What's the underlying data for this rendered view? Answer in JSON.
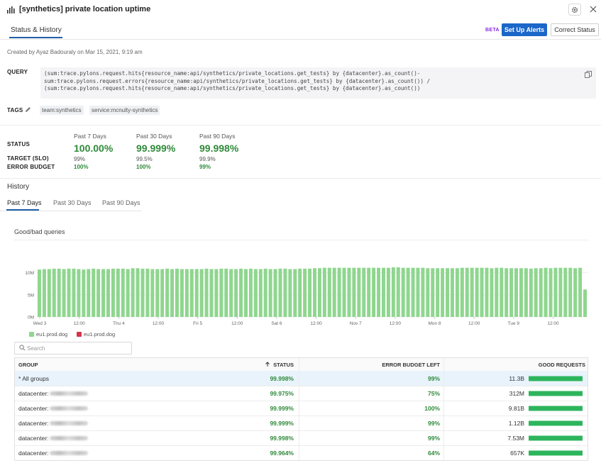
{
  "header": {
    "title": "[synthetics] private location uptime"
  },
  "tabs": {
    "status_history": "Status & History"
  },
  "actions": {
    "beta": "BETA",
    "setup_alerts": "Set Up Alerts",
    "correct_status": "Correct Status"
  },
  "created": "Created by Ayaz Badouraly on Mar 15, 2021, 9:19 am",
  "query": {
    "label": "QUERY",
    "lines": [
      "(sum:trace.pylons.request.hits{resource_name:api/synthetics/private_locations.get_tests} by {datacenter}.as_count()-",
      "sum:trace.pylons.request.errors{resource_name:api/synthetics/private_locations.get_tests} by {datacenter}.as_count()) /",
      "(sum:trace.pylons.request.hits{resource_name:api/synthetics/private_locations.get_tests} by {datacenter}.as_count())"
    ]
  },
  "tags": {
    "label": "TAGS",
    "items": [
      "team:synthetics",
      "service:mcnulty-synthetics"
    ]
  },
  "stats": {
    "status_label": "STATUS",
    "target_label": "TARGET (SLO)",
    "budget_label": "ERROR BUDGET",
    "periods": [
      {
        "label": "Past 7 Days",
        "status": "100.00%",
        "target": "99%",
        "budget": "100%"
      },
      {
        "label": "Past 30 Days",
        "status": "99.999%",
        "target": "99.5%",
        "budget": "100%"
      },
      {
        "label": "Past 90 Days",
        "status": "99.998%",
        "target": "99.9%",
        "budget": "99%"
      }
    ]
  },
  "history": {
    "title": "History",
    "tabs": [
      "Past 7 Days",
      "Past 30 Days",
      "Past 90 Days"
    ]
  },
  "chart": {
    "title": "Good/bad queries",
    "legend": [
      {
        "label": "eu1.prod.dog",
        "color": "#8fd68f"
      },
      {
        "label": "eu1.prod.dog",
        "color": "#d9334b"
      }
    ]
  },
  "chart_data": {
    "type": "bar",
    "x_tick_labels": [
      "Wed 3",
      "12:00",
      "Thu 4",
      "12:00",
      "Fri 5",
      "12:00",
      "Sat 6",
      "12:00",
      "Nov 7",
      "12:00",
      "Mon 8",
      "12:00",
      "Tue 9",
      "12:00"
    ],
    "y_tick_labels": [
      "10M",
      "5M",
      "0M"
    ],
    "ylim": [
      0,
      12000000
    ],
    "series": [
      {
        "name": "eu1.prod.dog",
        "color": "#8fd68f",
        "values": [
          10.7,
          10.8,
          10.8,
          10.9,
          10.9,
          10.8,
          10.9,
          10.9,
          10.8,
          10.7,
          10.8,
          10.9,
          10.8,
          10.8,
          10.8,
          10.9,
          10.9,
          10.9,
          10.8,
          11.0,
          11.0,
          10.9,
          10.9,
          10.8,
          10.8,
          10.8,
          10.9,
          10.8,
          10.9,
          10.8,
          10.8,
          10.8,
          10.8,
          10.8,
          10.9,
          10.8,
          10.8,
          10.9,
          10.9,
          10.8,
          10.8,
          10.9,
          10.8,
          10.9,
          10.8,
          10.8,
          10.9,
          10.8,
          10.8,
          10.9,
          10.9,
          10.8,
          10.8,
          10.9,
          10.9,
          10.9,
          11.0,
          11.0,
          11.1,
          11.1,
          11.1,
          11.1,
          11.1,
          11.1,
          11.1,
          11.1,
          11.1,
          11.1,
          11.1,
          11.1,
          11.1,
          11.1,
          11.2,
          11.2,
          11.1,
          11.1,
          11.1,
          11.1,
          11.1,
          11.0,
          11.0,
          11.0,
          11.0,
          11.0,
          11.0,
          11.0,
          11.1,
          11.1,
          11.1,
          11.1,
          11.1,
          11.1,
          11.0,
          11.1,
          11.1,
          11.0,
          11.0,
          11.0,
          11.0,
          11.0,
          10.9,
          11.0,
          11.0,
          11.1,
          11.0,
          11.1,
          11.1,
          11.1,
          11.1,
          11.0,
          11.1,
          6.2
        ]
      },
      {
        "name": "eu1.prod.dog",
        "color": "#d9334b",
        "values": []
      }
    ],
    "unit": "M"
  },
  "search": {
    "placeholder": "Search"
  },
  "table": {
    "headers": {
      "group": "GROUP",
      "status": "STATUS",
      "budget": "ERROR BUDGET LEFT",
      "good": "GOOD REQUESTS"
    },
    "rows": [
      {
        "group": "* All groups",
        "status": "99.998%",
        "budget": "99%",
        "good": "11.3B",
        "good_fraction": 1.0
      },
      {
        "group": "datacenter:",
        "status": "99.975%",
        "budget": "75%",
        "good": "312M",
        "good_fraction": 1.0
      },
      {
        "group": "datacenter:",
        "status": "99.999%",
        "budget": "100%",
        "good": "9.81B",
        "good_fraction": 1.0
      },
      {
        "group": "datacenter:",
        "status": "99.999%",
        "budget": "99%",
        "good": "1.12B",
        "good_fraction": 1.0
      },
      {
        "group": "datacenter:",
        "status": "99.998%",
        "budget": "99%",
        "good": "7.53M",
        "good_fraction": 1.0
      },
      {
        "group": "datacenter:",
        "status": "99.964%",
        "budget": "64%",
        "good": "657K",
        "good_fraction": 1.0
      }
    ]
  }
}
